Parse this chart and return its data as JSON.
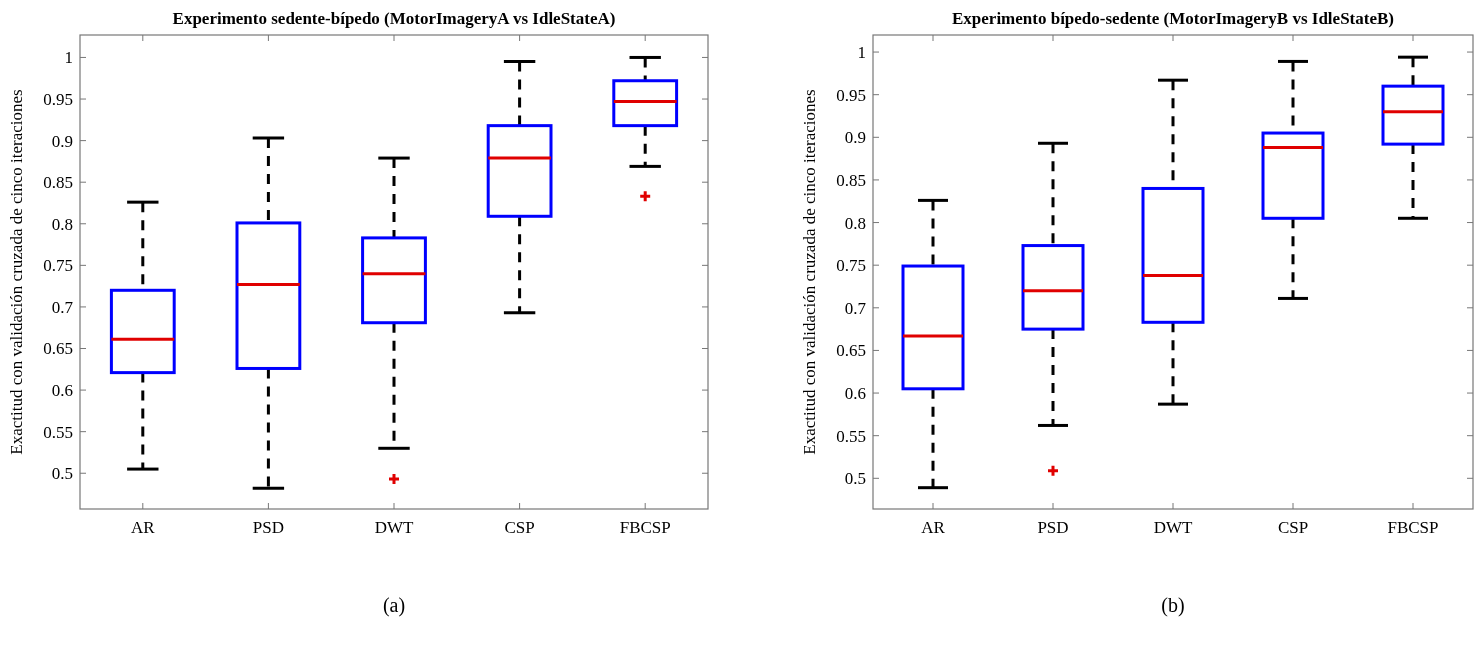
{
  "chart_data": [
    {
      "type": "box",
      "title": "Experimento sedente-bípedo (MotorImageryA vs IdleStateA)",
      "ylabel": "Exactitud con validación cruzada de cinco iteraciones",
      "categories": [
        "AR",
        "PSD",
        "DWT",
        "CSP",
        "FBCSP"
      ],
      "ylim": [
        0.457,
        1.027
      ],
      "yticks": [
        0.5,
        0.55,
        0.6,
        0.65,
        0.7,
        0.75,
        0.8,
        0.85,
        0.9,
        0.95,
        1
      ],
      "annotations": [
        "(a)"
      ],
      "series": [
        {
          "color": "#0000ff",
          "boxes": [
            {
              "low": 0.505,
              "q1": 0.621,
              "median": 0.661,
              "q3": 0.72,
              "high": 0.826
            },
            {
              "low": 0.482,
              "q1": 0.626,
              "median": 0.727,
              "q3": 0.801,
              "high": 0.903
            },
            {
              "low": 0.53,
              "q1": 0.681,
              "median": 0.74,
              "q3": 0.783,
              "high": 0.879,
              "outliers": [
                0.493
              ]
            },
            {
              "low": 0.693,
              "q1": 0.809,
              "median": 0.879,
              "q3": 0.918,
              "high": 0.995
            },
            {
              "low": 0.869,
              "q1": 0.918,
              "median": 0.947,
              "q3": 0.972,
              "high": 1.0,
              "outliers": [
                0.833
              ]
            }
          ]
        }
      ]
    },
    {
      "type": "box",
      "title": "Experimento bípedo-sedente (MotorImageryB vs IdleStateB)",
      "ylabel": "Exactitud con validación cruzada de cinco iteraciones",
      "categories": [
        "AR",
        "PSD",
        "DWT",
        "CSP",
        "FBCSP"
      ],
      "ylim": [
        0.464,
        1.02
      ],
      "yticks": [
        0.5,
        0.55,
        0.6,
        0.65,
        0.7,
        0.75,
        0.8,
        0.85,
        0.9,
        0.95,
        1
      ],
      "annotations": [
        "(b)"
      ],
      "series": [
        {
          "color": "#0000ff",
          "boxes": [
            {
              "low": 0.489,
              "q1": 0.605,
              "median": 0.667,
              "q3": 0.749,
              "high": 0.826
            },
            {
              "low": 0.562,
              "q1": 0.675,
              "median": 0.72,
              "q3": 0.773,
              "high": 0.893,
              "outliers": [
                0.509
              ]
            },
            {
              "low": 0.587,
              "q1": 0.683,
              "median": 0.738,
              "q3": 0.84,
              "high": 0.967
            },
            {
              "low": 0.711,
              "q1": 0.805,
              "median": 0.888,
              "q3": 0.905,
              "high": 0.989
            },
            {
              "low": 0.805,
              "q1": 0.892,
              "median": 0.93,
              "q3": 0.96,
              "high": 0.994
            }
          ]
        }
      ]
    }
  ]
}
